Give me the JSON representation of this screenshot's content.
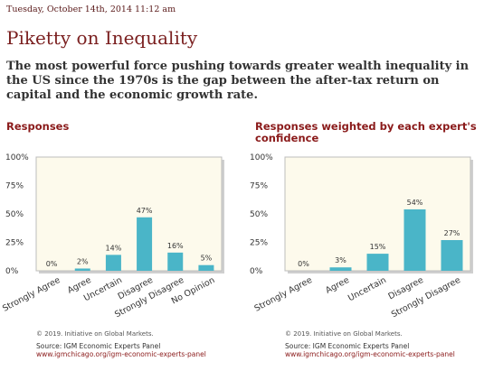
{
  "header": {
    "datestamp": "Tuesday, October 14th, 2014 11:12 am",
    "title": "Piketty on Inequality",
    "question": "The most powerful force pushing towards greater wealth inequality in the US since the 1970s is the gap between the after-tax return on capital and the economic growth rate."
  },
  "colors": {
    "bar": "#4ab5c8",
    "plot_bg": "#fdfaec",
    "title_red": "#8a1a1a"
  },
  "footer": {
    "copyright": "© 2019. Initiative on Global Markets.",
    "source_label": "Source: IGM Economic Experts Panel",
    "source_link": "www.igmchicago.org/igm-economic-experts-panel"
  },
  "chart_data": [
    {
      "type": "bar",
      "title": "Responses",
      "categories": [
        "Strongly Agree",
        "Agree",
        "Uncertain",
        "Disagree",
        "Strongly Disagree",
        "No Opinion"
      ],
      "values": [
        0,
        2,
        14,
        47,
        16,
        5
      ],
      "labels": [
        "0%",
        "2%",
        "14%",
        "47%",
        "16%",
        "5%"
      ],
      "yticks": [
        "100%",
        "75%",
        "50%",
        "25%",
        "0%"
      ],
      "ylim": [
        0,
        100
      ],
      "grid": false,
      "legend": "none"
    },
    {
      "type": "bar",
      "title": "Responses weighted by each expert's confidence",
      "categories": [
        "Strongly Agree",
        "Agree",
        "Uncertain",
        "Disagree",
        "Strongly Disagree"
      ],
      "values": [
        0,
        3,
        15,
        54,
        27
      ],
      "labels": [
        "0%",
        "3%",
        "15%",
        "54%",
        "27%"
      ],
      "yticks": [
        "100%",
        "75%",
        "50%",
        "25%",
        "0%"
      ],
      "ylim": [
        0,
        100
      ],
      "grid": false,
      "legend": "none"
    }
  ]
}
